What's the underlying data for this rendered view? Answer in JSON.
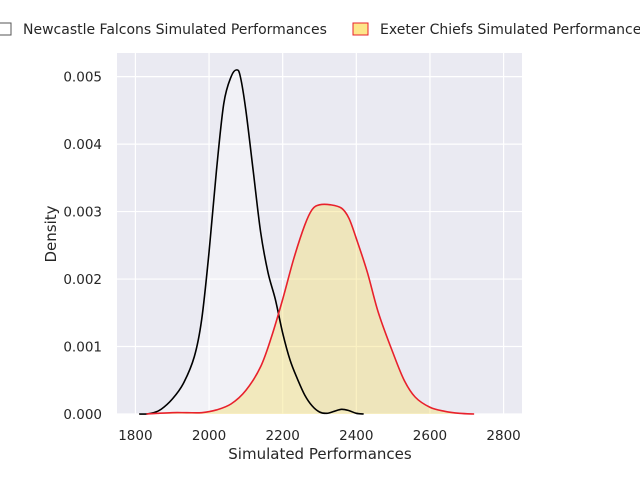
{
  "chart_data": {
    "type": "area",
    "xlabel": "Simulated Performances",
    "ylabel": "Density",
    "xlim": [
      1750,
      2850
    ],
    "ylim": [
      0,
      0.00535
    ],
    "x_ticks": [
      1800,
      2000,
      2200,
      2400,
      2600,
      2800
    ],
    "x_tick_labels": [
      "1800",
      "2000",
      "2200",
      "2400",
      "2600",
      "2800"
    ],
    "y_ticks": [
      0,
      0.001,
      0.002,
      0.003,
      0.004,
      0.005
    ],
    "y_tick_labels": [
      "0.000",
      "0.001",
      "0.002",
      "0.003",
      "0.004",
      "0.005"
    ],
    "grid": true,
    "legend_position": "top",
    "background_color": "#eaeaf2",
    "series": [
      {
        "name": "Newcastle Falcons Simulated Performances",
        "line_color": "#000000",
        "fill_color": "#ffffff",
        "fill_opacity": 0.35,
        "legend_edge_color": "#555555",
        "points": [
          [
            1810,
            0
          ],
          [
            1830,
            0
          ],
          [
            1850,
            2e-05
          ],
          [
            1870,
            7e-05
          ],
          [
            1900,
            0.00022
          ],
          [
            1930,
            0.00045
          ],
          [
            1960,
            0.00085
          ],
          [
            1980,
            0.0014
          ],
          [
            2000,
            0.0024
          ],
          [
            2020,
            0.0036
          ],
          [
            2040,
            0.0046
          ],
          [
            2060,
            0.005
          ],
          [
            2075,
            0.0051
          ],
          [
            2085,
            0.005
          ],
          [
            2100,
            0.0045
          ],
          [
            2120,
            0.0036
          ],
          [
            2140,
            0.0027
          ],
          [
            2160,
            0.0021
          ],
          [
            2180,
            0.0017
          ],
          [
            2200,
            0.0012
          ],
          [
            2220,
            0.0008
          ],
          [
            2240,
            0.00052
          ],
          [
            2260,
            0.00028
          ],
          [
            2280,
            0.00012
          ],
          [
            2300,
            3e-05
          ],
          [
            2320,
            1e-05
          ],
          [
            2340,
            4e-05
          ],
          [
            2360,
            7e-05
          ],
          [
            2380,
            5e-05
          ],
          [
            2400,
            1e-05
          ],
          [
            2420,
            0
          ]
        ]
      },
      {
        "name": "Exeter Chiefs Simulated Performances",
        "line_color": "#e8212c",
        "fill_color": "#f5df6a",
        "fill_opacity": 0.4,
        "legend_edge_color": "#e8212c",
        "legend_fill": "#fde68a",
        "points": [
          [
            1830,
            0
          ],
          [
            1860,
            1e-05
          ],
          [
            1900,
            2e-05
          ],
          [
            1940,
            2e-05
          ],
          [
            1980,
            2e-05
          ],
          [
            2020,
            6e-05
          ],
          [
            2060,
            0.00015
          ],
          [
            2100,
            0.00035
          ],
          [
            2140,
            0.0007
          ],
          [
            2170,
            0.00115
          ],
          [
            2200,
            0.0017
          ],
          [
            2230,
            0.0023
          ],
          [
            2260,
            0.0028
          ],
          [
            2280,
            0.00303
          ],
          [
            2300,
            0.0031
          ],
          [
            2330,
            0.0031
          ],
          [
            2360,
            0.00305
          ],
          [
            2380,
            0.0029
          ],
          [
            2400,
            0.0026
          ],
          [
            2430,
            0.0021
          ],
          [
            2460,
            0.0015
          ],
          [
            2500,
            0.0009
          ],
          [
            2530,
            0.0005
          ],
          [
            2560,
            0.00025
          ],
          [
            2600,
            0.0001
          ],
          [
            2640,
            4e-05
          ],
          [
            2680,
            1e-05
          ],
          [
            2720,
            0
          ]
        ]
      }
    ]
  }
}
